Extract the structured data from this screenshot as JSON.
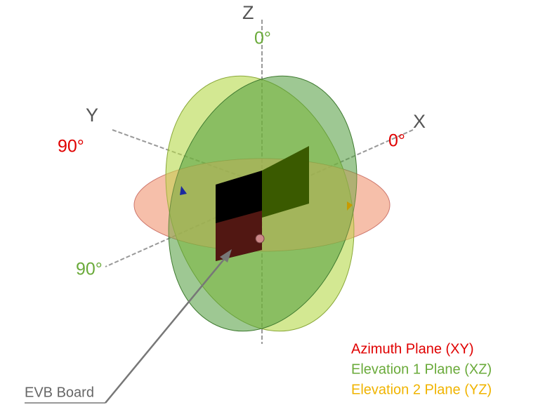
{
  "axes": {
    "z": "Z",
    "y": "Y",
    "x": "X"
  },
  "angles": {
    "elevation_top": "0°",
    "azimuth_y": "90°",
    "azimuth_x": "0°",
    "elevation_side": "90°"
  },
  "callout": "EVB Board",
  "legend": [
    "Azimuth Plane (XY)",
    "Elevation 1 Plane (XZ)",
    "Elevation 2 Plane (YZ)"
  ]
}
